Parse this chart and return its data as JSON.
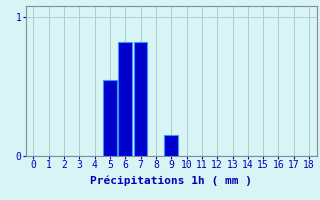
{
  "categories": [
    0,
    1,
    2,
    3,
    4,
    5,
    6,
    7,
    8,
    9,
    10,
    11,
    12,
    13,
    14,
    15,
    16,
    17,
    18
  ],
  "values": [
    0,
    0,
    0,
    0,
    0,
    0.55,
    0.82,
    0.82,
    0,
    0.15,
    0,
    0,
    0,
    0,
    0,
    0,
    0,
    0,
    0
  ],
  "bar_color": "#0000cc",
  "bar_edge_color": "#3399ff",
  "xlabel": "Précipitations 1h ( mm )",
  "xlabel_color": "#0000bb",
  "yticks": [
    0,
    1
  ],
  "ytick_labels": [
    "0",
    "1"
  ],
  "xtick_labels": [
    "0",
    "1",
    "2",
    "3",
    "4",
    "5",
    "6",
    "7",
    "8",
    "9",
    "10",
    "11",
    "12",
    "13",
    "14",
    "15",
    "16",
    "17",
    "18"
  ],
  "ylim": [
    0,
    1.08
  ],
  "xlim": [
    -0.5,
    18.5
  ],
  "background_color": "#d8f4f4",
  "grid_color": "#aacece",
  "axis_color": "#888899",
  "tick_color": "#0000bb",
  "xlabel_fontsize": 8,
  "tick_fontsize": 7
}
